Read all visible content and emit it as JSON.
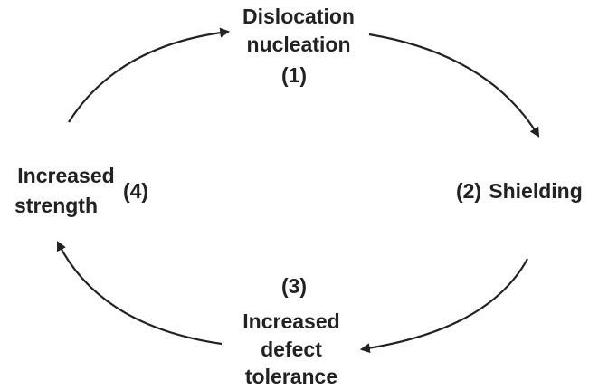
{
  "nodes": [
    {
      "lines": [
        "Dislocation",
        "nucleation"
      ],
      "number": "(1)"
    },
    {
      "lines": [
        "Shielding"
      ],
      "number": "(2)"
    },
    {
      "lines": [
        "Increased",
        "defect",
        "tolerance"
      ],
      "number": "(3)"
    },
    {
      "lines": [
        "Increased",
        "strength"
      ],
      "number": "(4)"
    }
  ]
}
